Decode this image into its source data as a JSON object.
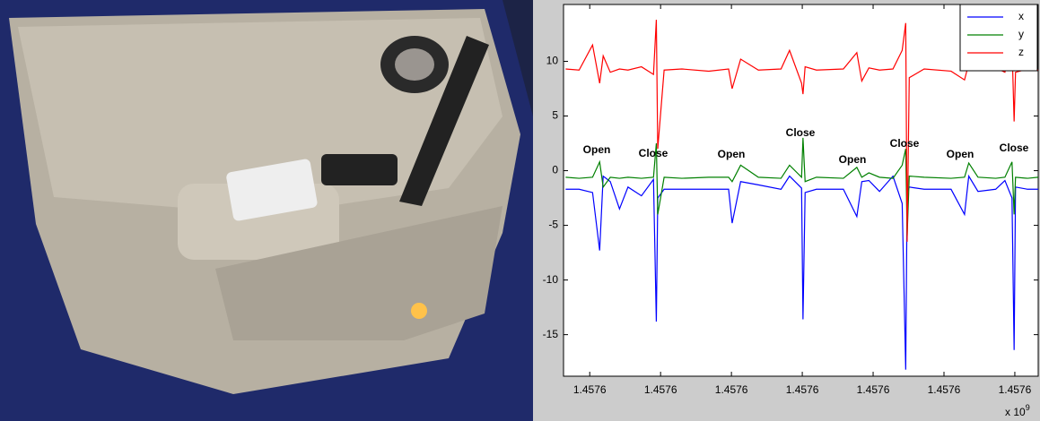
{
  "chart_data": {
    "type": "line",
    "x": [
      1.4575966,
      1.4575985,
      1.4576004,
      1.4576014,
      1.4576019,
      1.4576029,
      1.4576042,
      1.4576054,
      1.4576073,
      1.457609,
      1.4576094,
      1.4576096,
      1.4576105,
      1.457613,
      1.4576168,
      1.4576196,
      1.4576201,
      1.4576213,
      1.4576238,
      1.457627,
      1.4576282,
      1.4576299,
      1.4576301,
      1.4576304,
      1.457632,
      1.4576358,
      1.4576377,
      1.4576384,
      1.4576394,
      1.4576409,
      1.4576428,
      1.4576441,
      1.4576446,
      1.4576448,
      1.4576451,
      1.4576472,
      1.457651,
      1.4576529,
      1.4576535,
      1.4576548,
      1.4576573,
      1.4576586,
      1.4576596,
      1.4576599,
      1.4576601,
      1.4576618,
      1.4576633
    ],
    "series": [
      {
        "name": "x",
        "color": "#0000ff",
        "values": [
          -1.7,
          -1.7,
          -2.0,
          -7.3,
          -0.5,
          -1.0,
          -3.5,
          -1.5,
          -2.3,
          -0.8,
          -13.8,
          -2.5,
          -1.7,
          -1.7,
          -1.7,
          -1.7,
          -4.8,
          -1.0,
          -1.3,
          -1.7,
          -0.5,
          -1.6,
          -13.6,
          -2.0,
          -1.7,
          -1.7,
          -4.2,
          -1.0,
          -0.9,
          -1.9,
          -0.5,
          -3.0,
          -18.2,
          -2.0,
          -1.5,
          -1.7,
          -1.7,
          -4.0,
          -0.5,
          -1.9,
          -1.7,
          -0.9,
          -2.5,
          -16.4,
          -1.5,
          -1.7,
          -1.7
        ]
      },
      {
        "name": "y",
        "color": "#008000",
        "values": [
          -0.6,
          -0.7,
          -0.6,
          0.8,
          -1.5,
          -0.6,
          -0.7,
          -0.6,
          -0.7,
          -0.6,
          2.5,
          -4.0,
          -0.6,
          -0.7,
          -0.6,
          -0.6,
          -1.0,
          0.5,
          -0.6,
          -0.7,
          0.5,
          -0.6,
          3.0,
          -1.0,
          -0.6,
          -0.7,
          0.3,
          -0.6,
          -0.2,
          -0.6,
          -0.7,
          0.5,
          2.0,
          -6.0,
          -0.5,
          -0.6,
          -0.7,
          -0.6,
          0.7,
          -0.6,
          -0.7,
          -0.6,
          0.8,
          -4.0,
          -0.6,
          -0.7,
          -0.6
        ]
      },
      {
        "name": "z",
        "color": "#ff0000",
        "values": [
          9.3,
          9.2,
          11.5,
          8.0,
          10.5,
          9.0,
          9.3,
          9.2,
          9.5,
          8.8,
          13.8,
          2.0,
          9.2,
          9.3,
          9.1,
          9.3,
          7.5,
          10.2,
          9.2,
          9.3,
          11.0,
          8.0,
          7.0,
          9.5,
          9.2,
          9.3,
          10.8,
          8.2,
          9.4,
          9.2,
          9.3,
          11.0,
          13.5,
          -6.5,
          8.5,
          9.3,
          9.1,
          8.3,
          9.8,
          9.2,
          9.4,
          9.0,
          11.5,
          4.5,
          9.0,
          9.3,
          9.2
        ]
      }
    ],
    "xlim": [
      1.4575963,
      1.4576633
    ],
    "xticks": [
      {
        "value": 1.4576,
        "label": "1.4576"
      },
      {
        "value": 1.45761,
        "label": "1.4576"
      },
      {
        "value": 1.45762,
        "label": "1.4576"
      },
      {
        "value": 1.45763,
        "label": "1.4576"
      },
      {
        "value": 1.45764,
        "label": "1.4576"
      },
      {
        "value": 1.45765,
        "label": "1.4576"
      },
      {
        "value": 1.45766,
        "label": "1.4576"
      }
    ],
    "x_multiplier": "x 10",
    "x_multiplier_exponent": "9",
    "ylim": [
      -18.8,
      15.2
    ],
    "yticks": [
      -15,
      -10,
      -5,
      0,
      5,
      10
    ],
    "legend": "top-right",
    "annotations": [
      "Open",
      "Close",
      "Open",
      "Close",
      "Open",
      "Close",
      "Open",
      "Close"
    ]
  }
}
